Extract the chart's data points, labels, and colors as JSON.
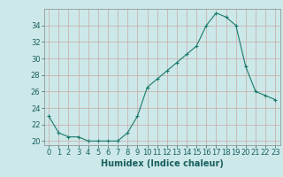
{
  "x": [
    0,
    1,
    2,
    3,
    4,
    5,
    6,
    7,
    8,
    9,
    10,
    11,
    12,
    13,
    14,
    15,
    16,
    17,
    18,
    19,
    20,
    21,
    22,
    23
  ],
  "y": [
    23,
    21,
    20.5,
    20.5,
    20,
    20,
    20,
    20,
    21,
    23,
    26.5,
    27.5,
    28.5,
    29.5,
    30.5,
    31.5,
    34,
    35.5,
    35,
    34,
    29,
    26,
    25.5,
    25
  ],
  "line_color": "#1a7a6a",
  "marker": "+",
  "marker_color": "#1a7a6a",
  "bg_color": "#cce8e8",
  "grid_color": "#b0c8c8",
  "grid_color_minor": "#c8a8a8",
  "xlabel": "Humidex (Indice chaleur)",
  "xlim": [
    -0.5,
    23.5
  ],
  "ylim": [
    19.5,
    36.0
  ],
  "yticks": [
    20,
    22,
    24,
    26,
    28,
    30,
    32,
    34
  ],
  "xticks": [
    0,
    1,
    2,
    3,
    4,
    5,
    6,
    7,
    8,
    9,
    10,
    11,
    12,
    13,
    14,
    15,
    16,
    17,
    18,
    19,
    20,
    21,
    22,
    23
  ],
  "tick_color": "#1a6060",
  "spine_color": "#888888",
  "fontsize_label": 7,
  "fontsize_tick": 6
}
